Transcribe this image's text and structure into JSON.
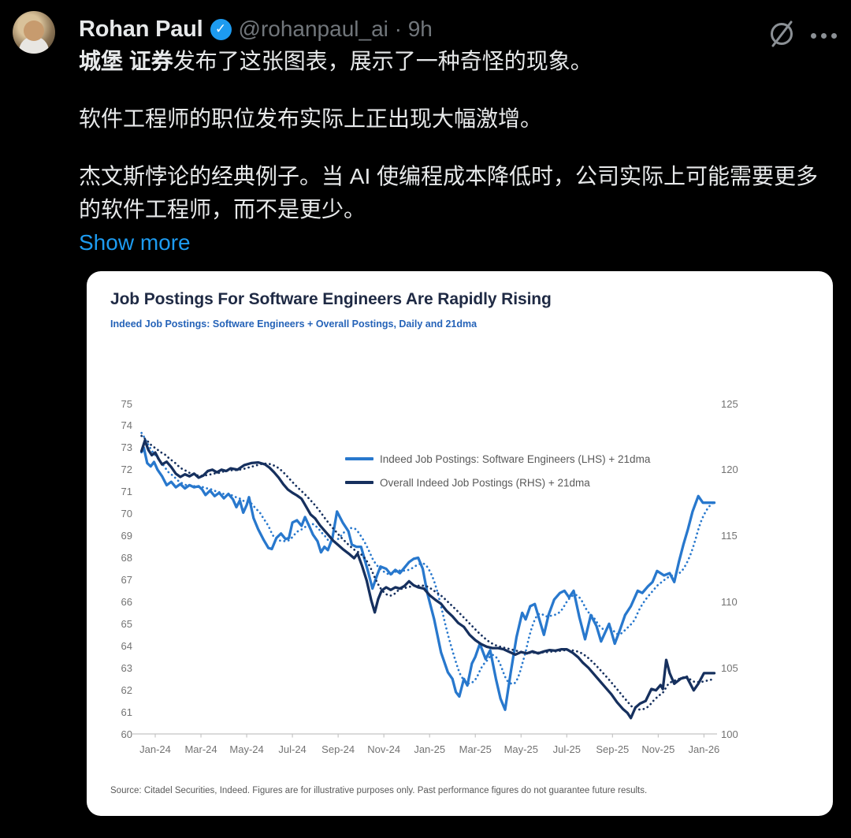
{
  "post": {
    "author": "Rohan Paul",
    "verified_glyph": "✓",
    "handle_line": "@rohanpaul_ai · 9h",
    "paragraph1_bold": "城堡 证券",
    "paragraph1_rest": "发布了这张图表，展示了一种奇怪的现象。",
    "paragraph2": "软件工程师的职位发布实际上正出现大幅激增。",
    "paragraph3": "杰文斯悖论的经典例子。当 AI 使编程成本降低时，公司实际上可能需要更多的软件工程师，而不是更少。",
    "show_more": "Show more"
  },
  "icons": {
    "verified": "verified-badge",
    "grok": "grok-slash-circle",
    "more": "ellipsis-more"
  },
  "colors": {
    "background": "#000000",
    "text_primary": "#e7e9ea",
    "text_secondary": "#71767b",
    "link_blue": "#1d9bf0",
    "card_bg": "#ffffff",
    "series_light_blue": "#2878cd",
    "series_navy": "#16305e"
  },
  "chart_data": {
    "type": "line",
    "title": "Job Postings For Software Engineers Are Rapidly Rising",
    "subtitle": "Indeed Job Postings: Software Engineers + Overall Postings, Daily and 21dma",
    "source": "Source: Citadel Securities, Indeed. Figures are for illustrative purposes only. Past performance figures do not guarantee future results.",
    "grid": false,
    "legend_position": "inside-top-right",
    "dma_window_months": 0.9,
    "x_axis": {
      "labels": [
        "Jan-24",
        "Mar-24",
        "May-24",
        "Jul-24",
        "Sep-24",
        "Nov-24",
        "Jan-25",
        "Mar-25",
        "May-25",
        "Jul-25",
        "Sep-25",
        "Nov-25",
        "Jan-26"
      ],
      "months_per_label": 2
    },
    "left_axis": {
      "min": 60,
      "max": 75,
      "ticks": [
        60,
        61,
        62,
        63,
        64,
        65,
        66,
        67,
        68,
        69,
        70,
        71,
        72,
        73,
        74,
        75
      ]
    },
    "right_axis": {
      "min": 100,
      "max": 125,
      "ticks": [
        100,
        105,
        110,
        115,
        120,
        125
      ]
    },
    "series": [
      {
        "name": "Indeed Job Postings: Software Engineers (LHS) + 21dma",
        "axis": "left",
        "color": "#2878cd",
        "styles": [
          "solid-daily",
          "dotted-21dma"
        ],
        "dma_seed": [
          [
            -1.5,
            74.6
          ],
          [
            -1.2,
            74.0
          ],
          [
            -0.9,
            73.3
          ]
        ],
        "points": [
          [
            -0.6,
            72.8
          ],
          [
            -0.5,
            73.0
          ],
          [
            -0.35,
            72.3
          ],
          [
            -0.2,
            72.15
          ],
          [
            -0.05,
            72.35
          ],
          [
            0.1,
            72.0
          ],
          [
            0.3,
            71.7
          ],
          [
            0.5,
            71.3
          ],
          [
            0.7,
            71.45
          ],
          [
            0.9,
            71.2
          ],
          [
            1.1,
            71.35
          ],
          [
            1.3,
            71.15
          ],
          [
            1.5,
            71.3
          ],
          [
            1.7,
            71.2
          ],
          [
            1.9,
            71.25
          ],
          [
            2.05,
            71.1
          ],
          [
            2.2,
            70.85
          ],
          [
            2.4,
            71.05
          ],
          [
            2.6,
            70.8
          ],
          [
            2.8,
            70.95
          ],
          [
            3.0,
            70.7
          ],
          [
            3.2,
            70.9
          ],
          [
            3.4,
            70.65
          ],
          [
            3.55,
            70.3
          ],
          [
            3.7,
            70.6
          ],
          [
            3.85,
            70.05
          ],
          [
            4.0,
            70.4
          ],
          [
            4.1,
            70.75
          ],
          [
            4.3,
            69.8
          ],
          [
            4.5,
            69.3
          ],
          [
            4.75,
            68.8
          ],
          [
            4.95,
            68.45
          ],
          [
            5.1,
            68.4
          ],
          [
            5.3,
            68.9
          ],
          [
            5.5,
            69.1
          ],
          [
            5.7,
            68.85
          ],
          [
            5.85,
            68.9
          ],
          [
            6.0,
            69.6
          ],
          [
            6.2,
            69.7
          ],
          [
            6.4,
            69.45
          ],
          [
            6.55,
            69.85
          ],
          [
            6.75,
            69.4
          ],
          [
            6.9,
            69.05
          ],
          [
            7.1,
            68.75
          ],
          [
            7.25,
            68.25
          ],
          [
            7.4,
            68.5
          ],
          [
            7.55,
            68.35
          ],
          [
            7.75,
            68.9
          ],
          [
            7.95,
            70.1
          ],
          [
            8.2,
            69.6
          ],
          [
            8.45,
            69.2
          ],
          [
            8.6,
            68.6
          ],
          [
            8.8,
            68.5
          ],
          [
            9.0,
            68.5
          ],
          [
            9.3,
            67.4
          ],
          [
            9.5,
            66.6
          ],
          [
            9.7,
            67.2
          ],
          [
            9.85,
            67.6
          ],
          [
            10.1,
            67.5
          ],
          [
            10.3,
            67.25
          ],
          [
            10.5,
            67.45
          ],
          [
            10.7,
            67.3
          ],
          [
            10.9,
            67.55
          ],
          [
            11.1,
            67.8
          ],
          [
            11.3,
            67.95
          ],
          [
            11.5,
            68.0
          ],
          [
            11.7,
            67.5
          ],
          [
            11.9,
            66.4
          ],
          [
            12.2,
            65.2
          ],
          [
            12.5,
            63.7
          ],
          [
            12.8,
            62.8
          ],
          [
            13.0,
            62.5
          ],
          [
            13.15,
            61.9
          ],
          [
            13.3,
            61.7
          ],
          [
            13.5,
            62.5
          ],
          [
            13.65,
            62.2
          ],
          [
            13.85,
            63.2
          ],
          [
            14.0,
            63.5
          ],
          [
            14.2,
            64.1
          ],
          [
            14.45,
            63.4
          ],
          [
            14.65,
            63.8
          ],
          [
            14.9,
            62.5
          ],
          [
            15.1,
            61.6
          ],
          [
            15.3,
            61.1
          ],
          [
            15.55,
            62.8
          ],
          [
            15.8,
            64.4
          ],
          [
            16.05,
            65.5
          ],
          [
            16.2,
            65.2
          ],
          [
            16.4,
            65.8
          ],
          [
            16.6,
            65.9
          ],
          [
            16.8,
            65.2
          ],
          [
            17.0,
            64.5
          ],
          [
            17.2,
            65.4
          ],
          [
            17.45,
            66.1
          ],
          [
            17.7,
            66.4
          ],
          [
            17.9,
            66.5
          ],
          [
            18.1,
            66.2
          ],
          [
            18.3,
            66.5
          ],
          [
            18.55,
            65.3
          ],
          [
            18.8,
            64.3
          ],
          [
            19.05,
            65.4
          ],
          [
            19.3,
            64.9
          ],
          [
            19.5,
            64.2
          ],
          [
            19.85,
            65.0
          ],
          [
            20.1,
            64.1
          ],
          [
            20.35,
            64.8
          ],
          [
            20.55,
            65.4
          ],
          [
            20.8,
            65.8
          ],
          [
            21.1,
            66.5
          ],
          [
            21.3,
            66.4
          ],
          [
            21.55,
            66.7
          ],
          [
            21.75,
            66.9
          ],
          [
            21.95,
            67.4
          ],
          [
            22.25,
            67.2
          ],
          [
            22.5,
            67.3
          ],
          [
            22.7,
            66.9
          ],
          [
            22.9,
            67.8
          ],
          [
            23.1,
            68.6
          ],
          [
            23.3,
            69.3
          ],
          [
            23.5,
            70.1
          ],
          [
            23.75,
            70.8
          ],
          [
            23.95,
            70.5
          ],
          [
            24.2,
            70.5
          ],
          [
            24.45,
            70.5
          ]
        ]
      },
      {
        "name": "Overall Indeed Job Postings (RHS) + 21dma",
        "axis": "right",
        "color": "#16305e",
        "styles": [
          "solid-daily",
          "dotted-21dma"
        ],
        "dma_seed": [
          [
            -1.5,
            123.6
          ],
          [
            -1.2,
            123.0
          ],
          [
            -0.9,
            122.2
          ]
        ],
        "points": [
          [
            -0.6,
            121.4
          ],
          [
            -0.45,
            122.2
          ],
          [
            -0.3,
            121.5
          ],
          [
            -0.15,
            121.1
          ],
          [
            0.0,
            121.3
          ],
          [
            0.15,
            120.8
          ],
          [
            0.3,
            120.4
          ],
          [
            0.5,
            120.6
          ],
          [
            0.7,
            120.2
          ],
          [
            0.9,
            119.7
          ],
          [
            1.1,
            119.45
          ],
          [
            1.3,
            119.65
          ],
          [
            1.5,
            119.5
          ],
          [
            1.7,
            119.7
          ],
          [
            1.9,
            119.4
          ],
          [
            2.1,
            119.55
          ],
          [
            2.3,
            119.9
          ],
          [
            2.5,
            120.0
          ],
          [
            2.7,
            119.8
          ],
          [
            2.9,
            120.0
          ],
          [
            3.1,
            119.9
          ],
          [
            3.3,
            120.1
          ],
          [
            3.6,
            120.0
          ],
          [
            3.9,
            120.35
          ],
          [
            4.2,
            120.5
          ],
          [
            4.5,
            120.55
          ],
          [
            4.8,
            120.4
          ],
          [
            5.0,
            120.15
          ],
          [
            5.2,
            119.8
          ],
          [
            5.4,
            119.4
          ],
          [
            5.6,
            118.9
          ],
          [
            5.8,
            118.5
          ],
          [
            6.0,
            118.25
          ],
          [
            6.2,
            118.05
          ],
          [
            6.4,
            117.8
          ],
          [
            6.6,
            117.2
          ],
          [
            6.8,
            116.6
          ],
          [
            7.0,
            116.3
          ],
          [
            7.2,
            115.8
          ],
          [
            7.4,
            115.4
          ],
          [
            7.6,
            115.0
          ],
          [
            7.8,
            114.6
          ],
          [
            8.0,
            114.3
          ],
          [
            8.2,
            114.0
          ],
          [
            8.5,
            113.6
          ],
          [
            8.7,
            113.3
          ],
          [
            8.85,
            113.65
          ],
          [
            9.05,
            112.7
          ],
          [
            9.25,
            111.6
          ],
          [
            9.45,
            110.1
          ],
          [
            9.6,
            109.2
          ],
          [
            9.75,
            110.2
          ],
          [
            9.9,
            110.85
          ],
          [
            10.1,
            111.1
          ],
          [
            10.3,
            110.9
          ],
          [
            10.5,
            111.1
          ],
          [
            10.7,
            111.0
          ],
          [
            10.9,
            111.2
          ],
          [
            11.1,
            111.55
          ],
          [
            11.3,
            111.25
          ],
          [
            11.5,
            111.1
          ],
          [
            11.75,
            111.0
          ],
          [
            12.0,
            110.5
          ],
          [
            12.25,
            110.15
          ],
          [
            12.5,
            109.85
          ],
          [
            12.75,
            109.3
          ],
          [
            13.0,
            108.9
          ],
          [
            13.25,
            108.4
          ],
          [
            13.5,
            108.1
          ],
          [
            13.75,
            107.5
          ],
          [
            14.0,
            107.1
          ],
          [
            14.25,
            106.8
          ],
          [
            14.5,
            106.6
          ],
          [
            14.75,
            106.5
          ],
          [
            15.0,
            106.5
          ],
          [
            15.25,
            106.4
          ],
          [
            15.5,
            106.2
          ],
          [
            15.75,
            106.0
          ],
          [
            16.0,
            106.2
          ],
          [
            16.25,
            106.1
          ],
          [
            16.5,
            106.25
          ],
          [
            16.75,
            106.1
          ],
          [
            17.0,
            106.25
          ],
          [
            17.25,
            106.35
          ],
          [
            17.5,
            106.3
          ],
          [
            17.75,
            106.4
          ],
          [
            18.0,
            106.4
          ],
          [
            18.25,
            106.15
          ],
          [
            18.5,
            105.8
          ],
          [
            18.7,
            105.4
          ],
          [
            18.95,
            105.0
          ],
          [
            19.2,
            104.5
          ],
          [
            19.45,
            104.0
          ],
          [
            19.7,
            103.5
          ],
          [
            19.95,
            103.0
          ],
          [
            20.2,
            102.4
          ],
          [
            20.45,
            101.9
          ],
          [
            20.65,
            101.6
          ],
          [
            20.8,
            101.2
          ],
          [
            21.0,
            102.0
          ],
          [
            21.2,
            102.3
          ],
          [
            21.45,
            102.5
          ],
          [
            21.7,
            103.4
          ],
          [
            21.9,
            103.3
          ],
          [
            22.1,
            103.7
          ],
          [
            22.2,
            103.4
          ],
          [
            22.35,
            105.6
          ],
          [
            22.5,
            104.6
          ],
          [
            22.7,
            103.8
          ],
          [
            23.0,
            104.2
          ],
          [
            23.25,
            104.3
          ],
          [
            23.55,
            103.3
          ],
          [
            23.75,
            103.8
          ],
          [
            24.0,
            104.6
          ],
          [
            24.2,
            104.6
          ],
          [
            24.45,
            104.6
          ]
        ]
      }
    ]
  }
}
